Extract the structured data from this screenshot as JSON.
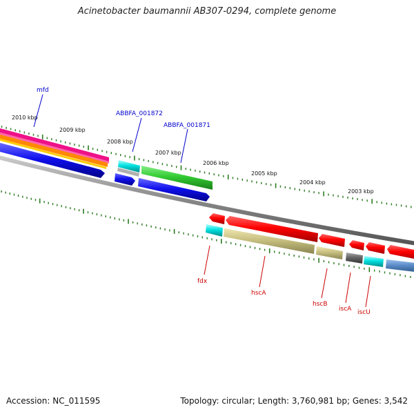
{
  "title": "Acinetobacter baumannii AB307-0294, complete genome",
  "footer": {
    "accession": "Accession: NC_011595",
    "summary": "Topology: circular; Length: 3,760,981 bp; Genes: 3,542"
  },
  "kbp_labels": [
    "2010 kbp",
    "2009 kbp",
    "2008 kbp",
    "2007 kbp",
    "2006 kbp",
    "2005 kbp",
    "2004 kbp",
    "2003 kbp"
  ],
  "forward_gene_labels": [
    "mfd",
    "ABBFA_001872",
    "ABBFA_001871"
  ],
  "reverse_gene_labels": [
    "fdx",
    "hscA",
    "hscB",
    "iscA",
    "iscU"
  ],
  "colors": {
    "backbone": "#888888",
    "tick": "#2a7a1f",
    "forward_label": "#0000cc",
    "reverse_label": "#cc0000",
    "cds": "#ff0000",
    "gene_blue": "#1010ee",
    "gene_green": "#33cc33",
    "gene_cyan": "#00e0e0",
    "gene_olive": "#c8c080",
    "gene_gray": "#666666",
    "gene_steel": "#5a8cc8",
    "gene_orange": "#ff8800",
    "gene_magenta": "#ee1188"
  }
}
